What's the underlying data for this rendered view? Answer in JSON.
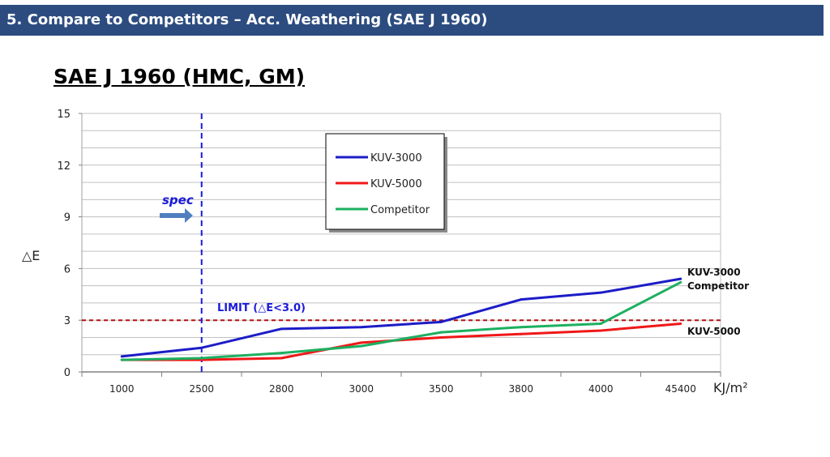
{
  "header": {
    "title": "5. Compare to Competitors – Acc. Weathering (SAE J 1960)"
  },
  "chart_data": {
    "type": "line",
    "title": "SAE J 1960 (HMC, GM)",
    "xlabel": "KJ/m²",
    "ylabel": "△E",
    "categories": [
      "1000",
      "2500",
      "2800",
      "3000",
      "3500",
      "3800",
      "4000",
      "45400"
    ],
    "ylim": [
      0,
      15
    ],
    "yticks": [
      0,
      3,
      6,
      9,
      12,
      15
    ],
    "grid": true,
    "legend_position": "top-center",
    "series": [
      {
        "name": "KUV-3000",
        "color": "#1c1cc8",
        "values": [
          0.9,
          1.4,
          2.5,
          2.6,
          2.9,
          4.2,
          4.6,
          5.4
        ]
      },
      {
        "name": "KUV-5000",
        "color": "#f01818",
        "values": [
          0.7,
          0.7,
          0.8,
          1.7,
          2.0,
          2.2,
          2.4,
          2.8
        ]
      },
      {
        "name": "Competitor",
        "color": "#1cb060",
        "values": [
          0.7,
          0.8,
          1.1,
          1.5,
          2.3,
          2.6,
          2.8,
          5.2
        ]
      }
    ],
    "annotations": {
      "spec_label": "spec",
      "limit_label": "LIMIT (△E<3.0)",
      "limit_value": 3.0,
      "spec_category": "2500",
      "end_label_top": "KUV-3000",
      "end_label_mid": "Competitor",
      "end_label_bottom": "KUV-5000"
    },
    "colors": {
      "limit_line": "#b01010",
      "spec_line": "#1a1ae0",
      "spec_arrow": "#4f7fc0",
      "grid": "#c0c0c0"
    }
  }
}
